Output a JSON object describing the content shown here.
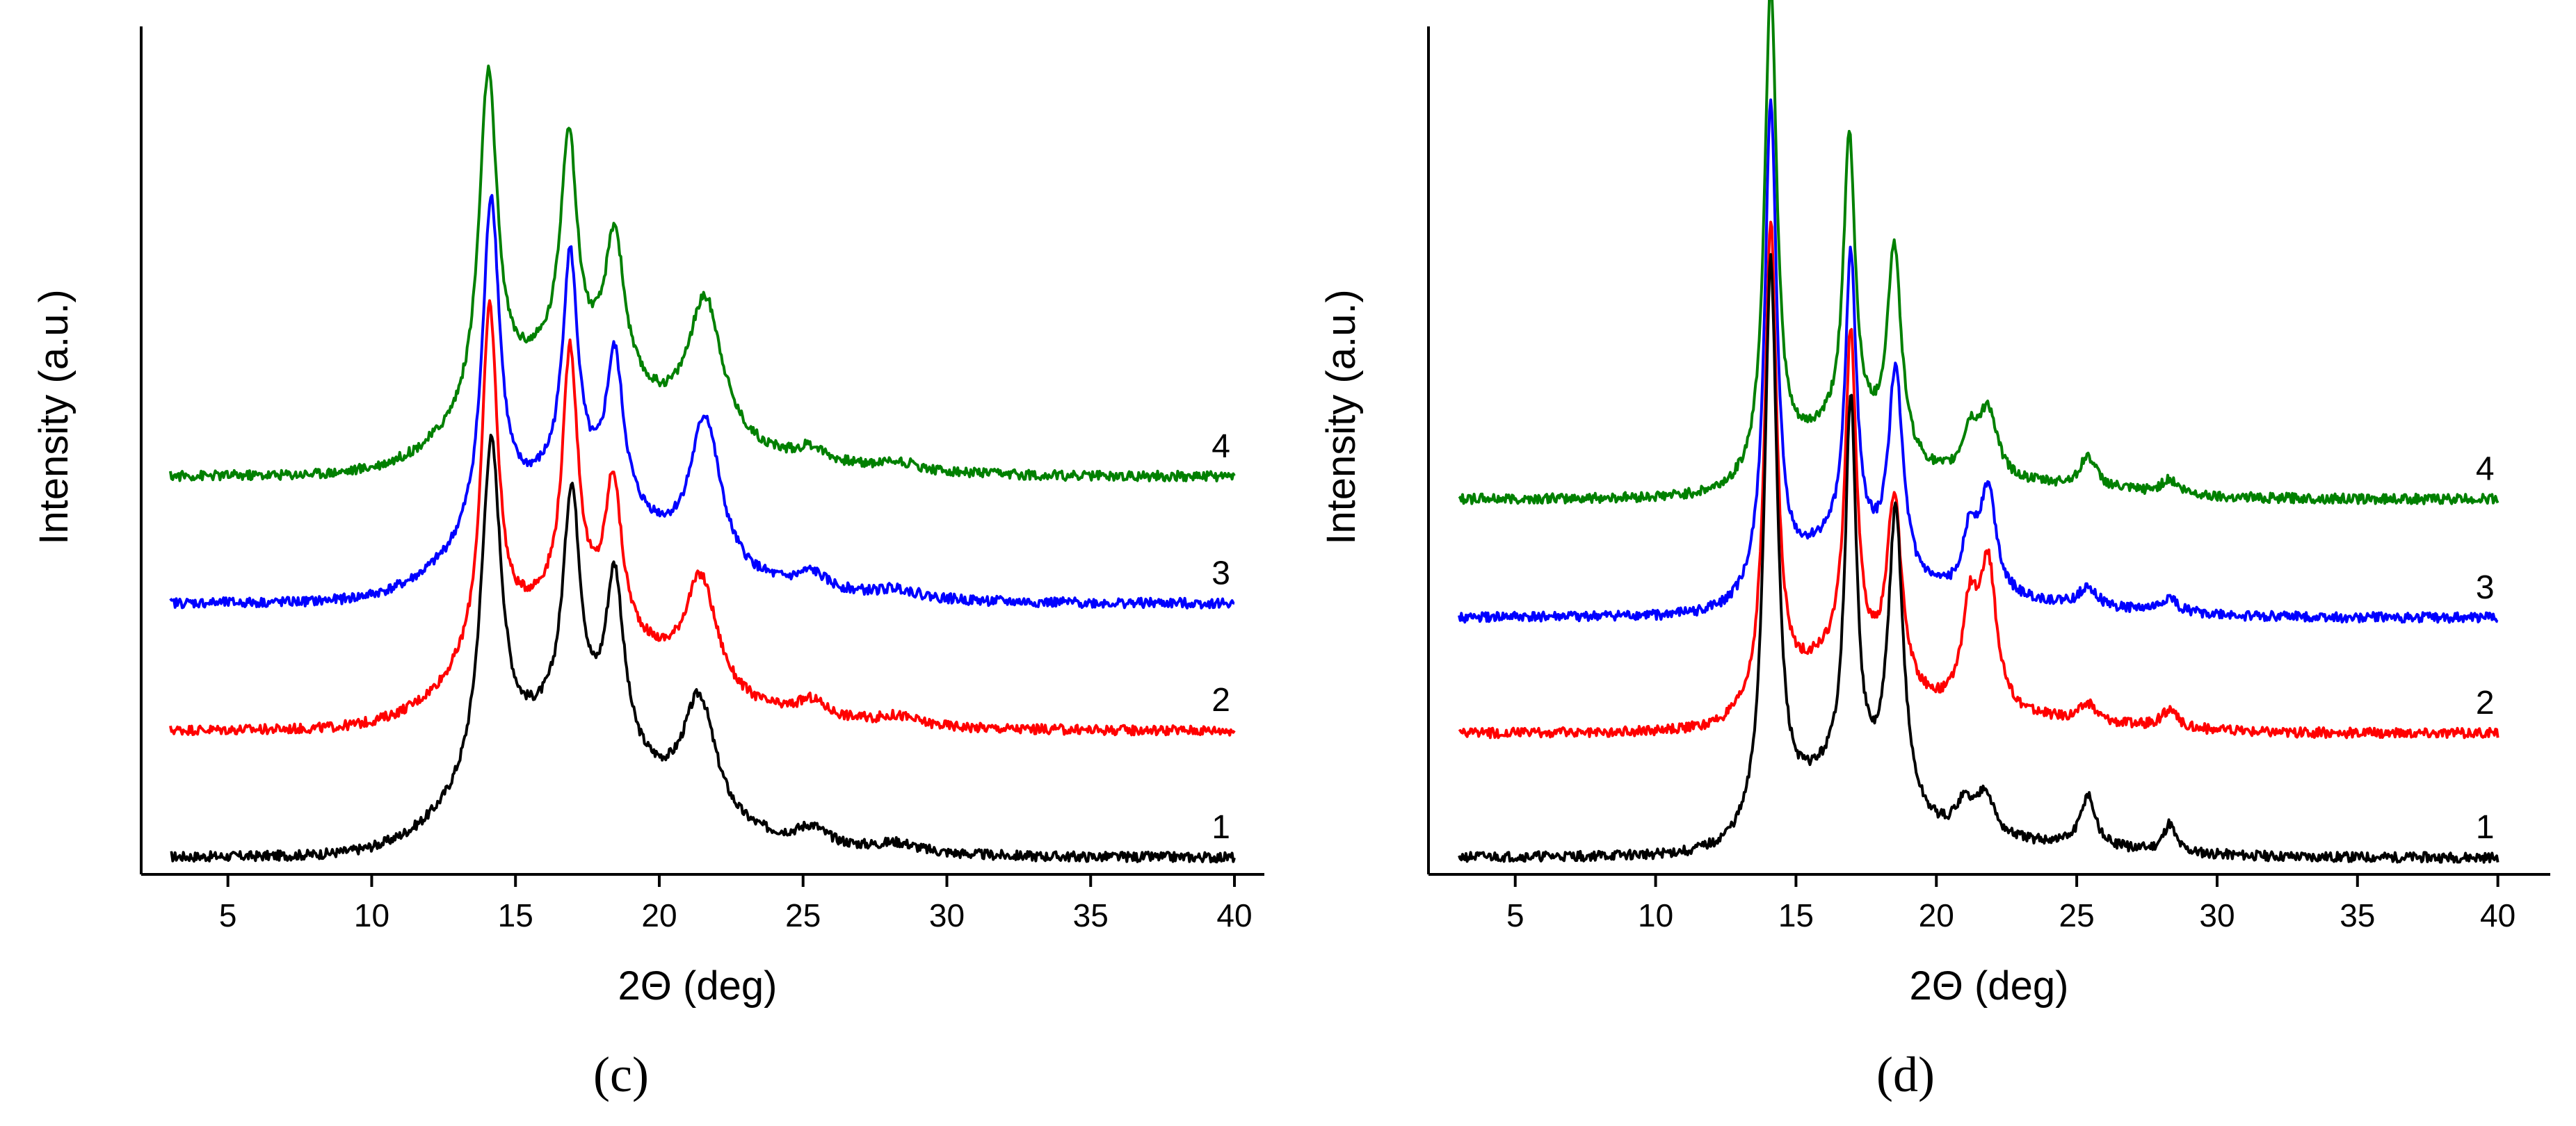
{
  "chart_data": [
    {
      "type": "line",
      "panel": "(c)",
      "xlabel": "2Θ (deg)",
      "ylabel": "Intensity (a.u.)",
      "xlim": [
        3,
        40
      ],
      "ylim": [
        0,
        3.0
      ],
      "xticks": [
        5,
        10,
        15,
        20,
        25,
        30,
        35,
        40
      ],
      "yticks_shown": false,
      "grid": false,
      "series": [
        {
          "name": "1",
          "color": "#000000",
          "offset": 0.0,
          "peaks": [
            [
              14.15,
              1.34,
              0.42
            ],
            [
              16.95,
              1.07,
              0.36
            ],
            [
              18.45,
              0.8,
              0.38
            ],
            [
              21.4,
              0.48,
              0.7
            ],
            [
              25.3,
              0.06,
              0.6
            ],
            [
              28.3,
              0.03,
              0.8
            ]
          ],
          "background": 0.42,
          "bg_width": 3.8
        },
        {
          "name": "2",
          "color": "#ff0000",
          "offset": 0.45,
          "peaks": [
            [
              14.1,
              1.38,
              0.34
            ],
            [
              16.9,
              1.14,
              0.32
            ],
            [
              18.4,
              0.7,
              0.34
            ],
            [
              21.45,
              0.46,
              0.7
            ],
            [
              25.3,
              0.06,
              0.6
            ],
            [
              28.3,
              0.03,
              0.8
            ]
          ],
          "background": 0.4,
          "bg_width": 3.8
        },
        {
          "name": "3",
          "color": "#0000ff",
          "offset": 0.9,
          "peaks": [
            [
              14.15,
              1.32,
              0.36
            ],
            [
              16.9,
              1.03,
              0.32
            ],
            [
              18.45,
              0.7,
              0.36
            ],
            [
              21.6,
              0.58,
              0.65
            ],
            [
              25.3,
              0.06,
              0.6
            ],
            [
              28.3,
              0.03,
              0.8
            ]
          ],
          "background": 0.38,
          "bg_width": 3.8
        },
        {
          "name": "4",
          "color": "#008000",
          "offset": 1.35,
          "peaks": [
            [
              14.05,
              1.32,
              0.38
            ],
            [
              16.85,
              1.02,
              0.34
            ],
            [
              18.45,
              0.68,
              0.4
            ],
            [
              21.6,
              0.55,
              0.75
            ],
            [
              25.3,
              0.05,
              0.6
            ],
            [
              28.3,
              0.03,
              0.8
            ]
          ],
          "background": 0.36,
          "bg_width": 3.8
        }
      ],
      "series_labels_at_x": 39.0
    },
    {
      "type": "line",
      "panel": "(d)",
      "xlabel": "2Θ (deg)",
      "ylabel": "Intensity (a.u.)",
      "xlim": [
        3,
        41
      ],
      "ylim": [
        0,
        3.0
      ],
      "xticks": [
        5,
        10,
        15,
        20,
        25,
        30,
        35,
        40
      ],
      "yticks_shown": false,
      "grid": false,
      "series": [
        {
          "name": "1",
          "color": "#000000",
          "offset": 0.0,
          "peaks": [
            [
              14.1,
              2.06,
              0.28
            ],
            [
              16.95,
              1.47,
              0.24
            ],
            [
              18.55,
              1.12,
              0.32
            ],
            [
              21.0,
              0.12,
              0.4
            ],
            [
              21.75,
              0.16,
              0.35
            ],
            [
              25.4,
              0.18,
              0.3
            ],
            [
              28.3,
              0.1,
              0.25
            ]
          ],
          "background": 0.24,
          "bg_width": 2.5
        },
        {
          "name": "2",
          "color": "#ff0000",
          "offset": 0.44,
          "peaks": [
            [
              14.1,
              1.76,
              0.26
            ],
            [
              16.95,
              1.29,
              0.24
            ],
            [
              18.5,
              0.73,
              0.32
            ],
            [
              21.2,
              0.36,
              0.35
            ],
            [
              21.85,
              0.5,
              0.35
            ],
            [
              25.4,
              0.06,
              0.35
            ],
            [
              28.3,
              0.06,
              0.35
            ]
          ],
          "background": 0.22,
          "bg_width": 2.5
        },
        {
          "name": "3",
          "color": "#0000ff",
          "offset": 0.85,
          "peaks": [
            [
              14.1,
              1.77,
              0.26
            ],
            [
              16.95,
              1.15,
              0.24
            ],
            [
              18.55,
              0.79,
              0.3
            ],
            [
              21.2,
              0.22,
              0.35
            ],
            [
              21.85,
              0.37,
              0.35
            ],
            [
              25.4,
              0.07,
              0.35
            ],
            [
              28.3,
              0.05,
              0.35
            ]
          ],
          "background": 0.22,
          "bg_width": 2.5
        },
        {
          "name": "4",
          "color": "#008000",
          "offset": 1.27,
          "peaks": [
            [
              14.1,
              1.79,
              0.26
            ],
            [
              16.9,
              1.16,
              0.25
            ],
            [
              18.5,
              0.8,
              0.3
            ],
            [
              21.2,
              0.16,
              0.35
            ],
            [
              21.85,
              0.24,
              0.4
            ],
            [
              25.4,
              0.11,
              0.35
            ],
            [
              28.3,
              0.05,
              0.35
            ]
          ],
          "background": 0.2,
          "bg_width": 2.5
        }
      ],
      "series_labels_at_x": 39.0
    }
  ]
}
